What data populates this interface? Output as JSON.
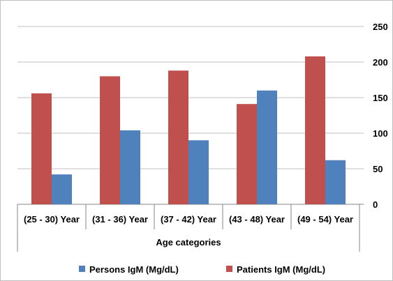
{
  "chart_data": {
    "type": "bar",
    "categories": [
      "(25 - 30) Year",
      "(31 - 36) Year",
      "(37 - 42) Year",
      "(43 - 48) Year",
      "(49 - 54) Year"
    ],
    "series": [
      {
        "name": "Persons IgM (Mg/dL)",
        "values": [
          42,
          104,
          90,
          160,
          62
        ],
        "color": "#4f81bd"
      },
      {
        "name": "Patients IgM (Mg/dL)",
        "values": [
          156,
          180,
          188,
          141,
          208
        ],
        "color": "#c0504d"
      }
    ],
    "xlabel": "Age categories",
    "ylabel": "",
    "ylim": [
      0,
      250
    ],
    "yticks": [
      0,
      50,
      100,
      150,
      200,
      250
    ],
    "y_axis_side": "right",
    "grid": true,
    "legend_position": "bottom",
    "series_draw_order": [
      "Patients IgM (Mg/dL)",
      "Persons IgM (Mg/dL)"
    ]
  }
}
